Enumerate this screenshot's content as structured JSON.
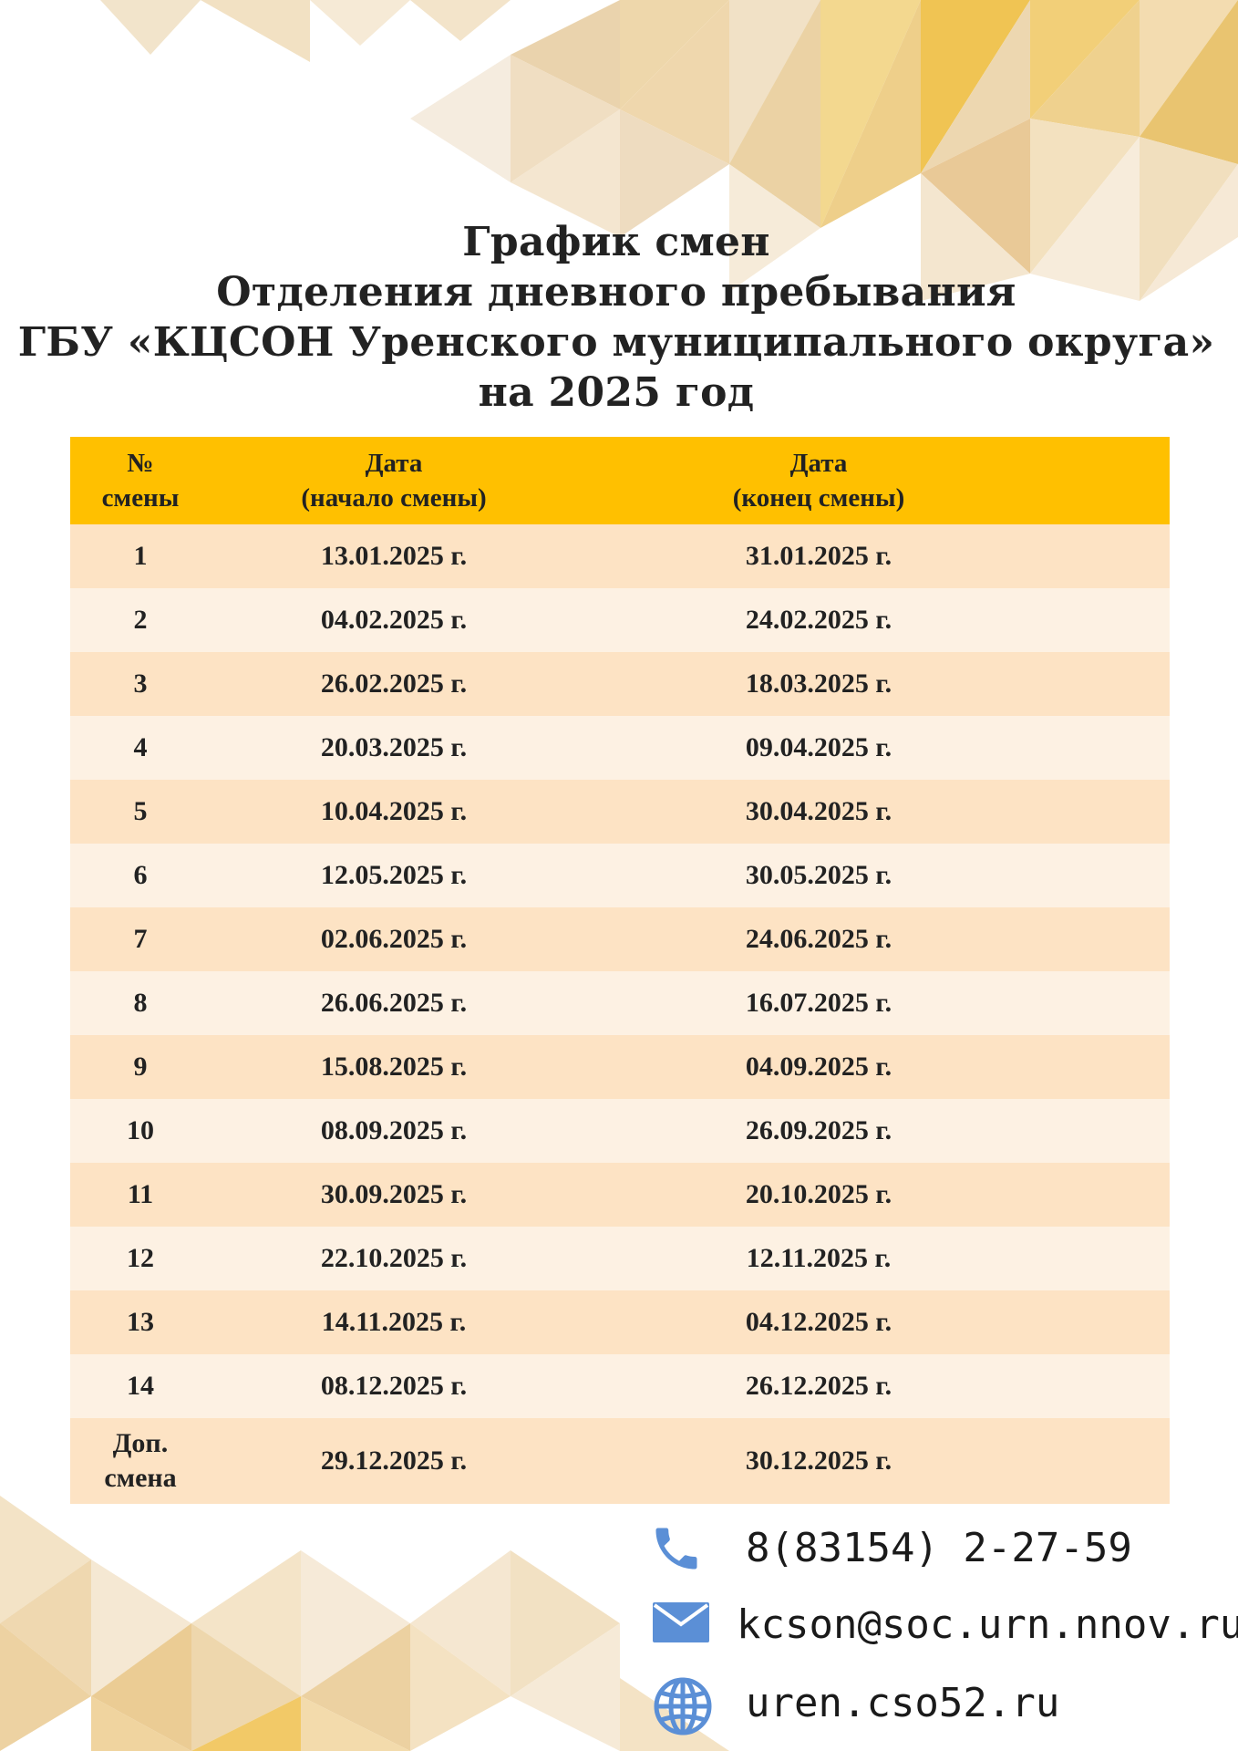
{
  "title": {
    "line1": "График смен",
    "line2": "Отделения дневного пребывания",
    "line3": "ГБУ «КЦСОН Уренского муниципального округа»",
    "line4": "на 2025 год"
  },
  "table": {
    "headers": {
      "num_line1": "№",
      "num_line2": "смены",
      "start_line1": "Дата",
      "start_line2": "(начало смены)",
      "end_line1": "Дата",
      "end_line2": "(конец смены)"
    },
    "rows": [
      {
        "num": "1",
        "start": "13.01.2025 г.",
        "end": "31.01.2025 г."
      },
      {
        "num": "2",
        "start": "04.02.2025 г.",
        "end": "24.02.2025 г."
      },
      {
        "num": "3",
        "start": "26.02.2025 г.",
        "end": "18.03.2025 г."
      },
      {
        "num": "4",
        "start": "20.03.2025 г.",
        "end": "09.04.2025 г."
      },
      {
        "num": "5",
        "start": "10.04.2025 г.",
        "end": "30.04.2025 г."
      },
      {
        "num": "6",
        "start": "12.05.2025 г.",
        "end": "30.05.2025 г."
      },
      {
        "num": "7",
        "start": "02.06.2025 г.",
        "end": "24.06.2025 г."
      },
      {
        "num": "8",
        "start": "26.06.2025 г.",
        "end": "16.07.2025 г."
      },
      {
        "num": "9",
        "start": "15.08.2025 г.",
        "end": "04.09.2025 г."
      },
      {
        "num": "10",
        "start": "08.09.2025 г.",
        "end": "26.09.2025 г."
      },
      {
        "num": "11",
        "start": "30.09.2025 г.",
        "end": "20.10.2025 г."
      },
      {
        "num": "12",
        "start": "22.10.2025 г.",
        "end": "12.11.2025 г."
      },
      {
        "num": "13",
        "start": "14.11.2025 г.",
        "end": "04.12.2025 г."
      },
      {
        "num": "14",
        "start": "08.12.2025 г.",
        "end": "26.12.2025 г."
      }
    ],
    "extra_row": {
      "num_line1": "Доп.",
      "num_line2": "смена",
      "start": "29.12.2025 г.",
      "end": "30.12.2025 г."
    }
  },
  "contacts": {
    "phone": "8(83154) 2-27-59",
    "email": "kcson@soc.urn.nnov.ru",
    "website": "uren.cso52.ru",
    "icon_color": "#5b8fd6"
  },
  "colors": {
    "header_bg": "#ffc000",
    "row_odd": "#fde3c4",
    "row_even": "#fdf1e3"
  }
}
